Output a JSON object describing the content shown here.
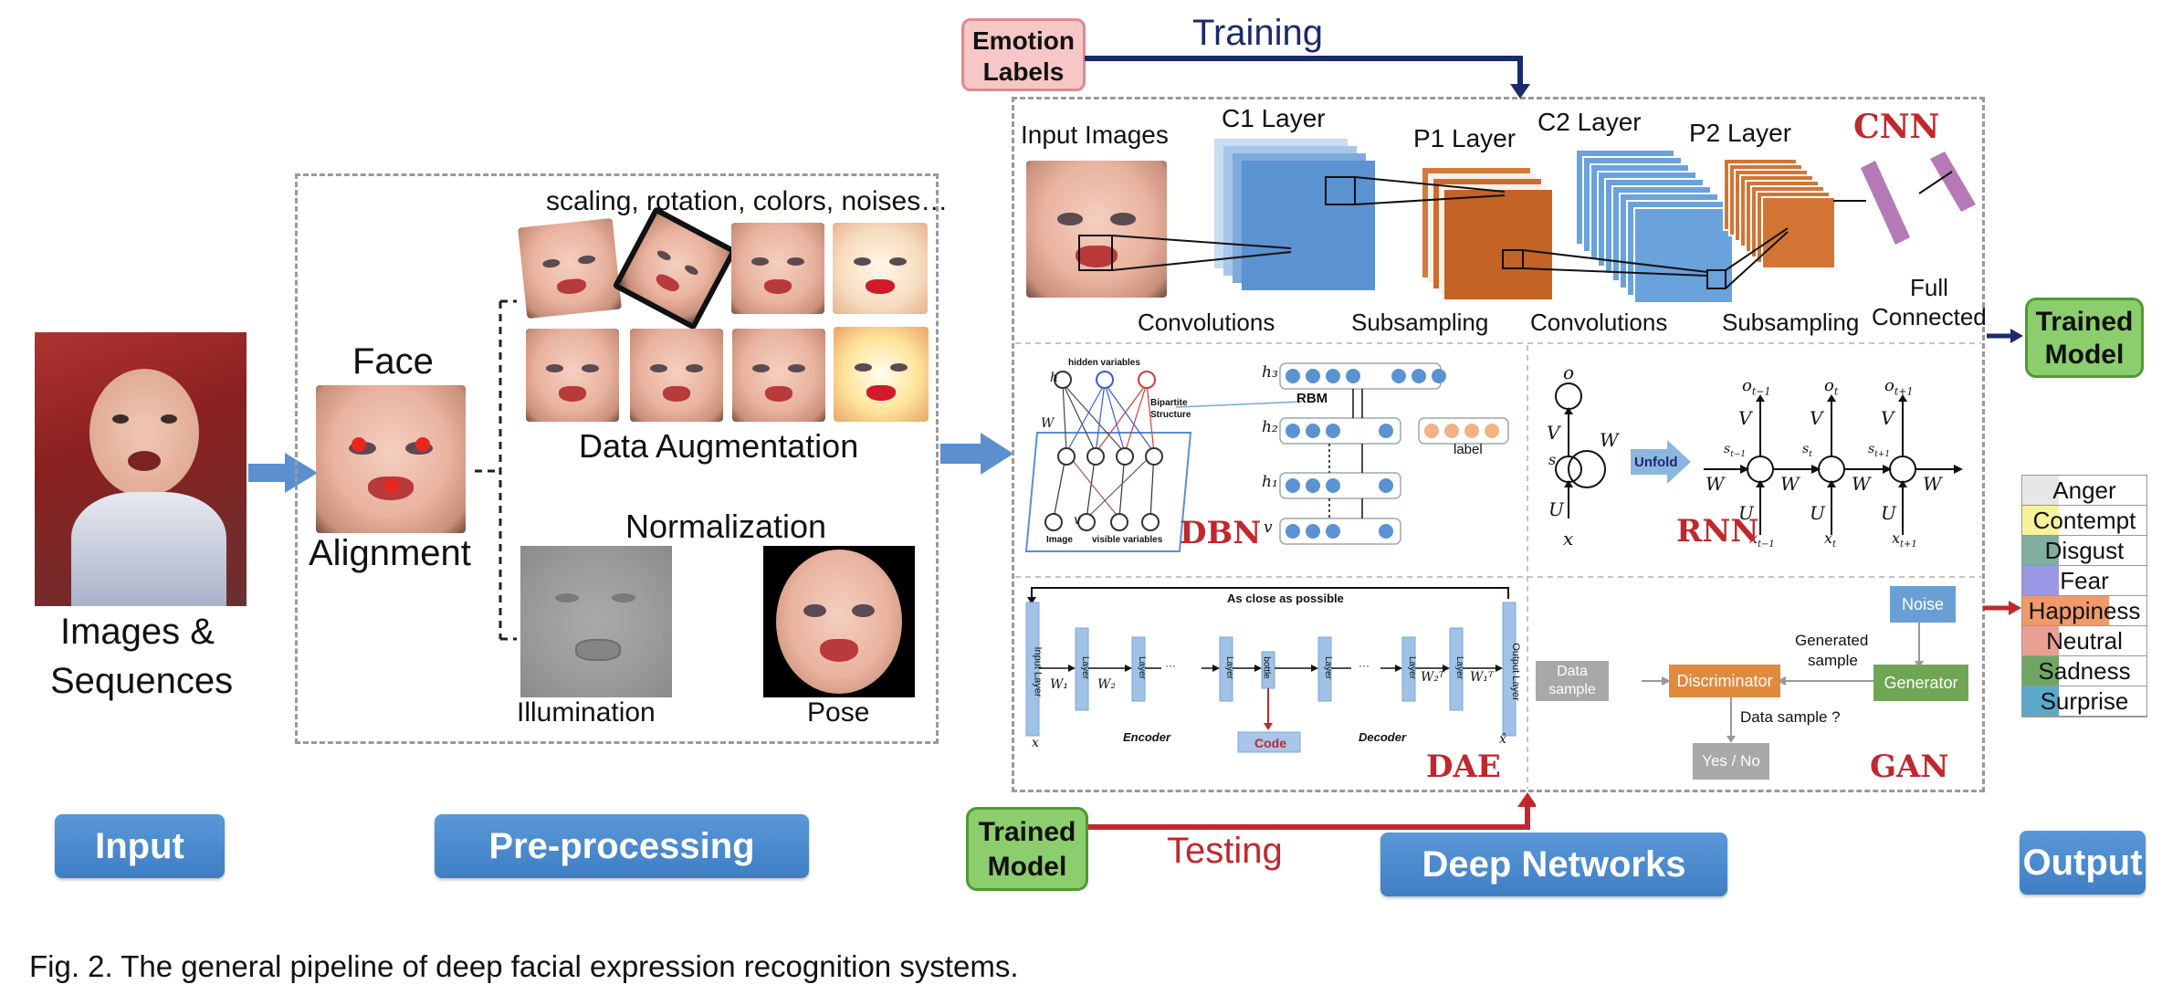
{
  "stages": {
    "input": "Input",
    "preprocessing": "Pre-processing",
    "deep_networks": "Deep Networks",
    "output": "Output"
  },
  "input_panel": {
    "caption_line1": "Images &",
    "caption_line2": "Sequences"
  },
  "preprocessing": {
    "face_label": "Face",
    "alignment_label": "Alignment",
    "augmentation_top": "scaling, rotation, colors, noises…",
    "augmentation_label": "Data Augmentation",
    "normalization_label": "Normalization",
    "illumination_label": "Illumination",
    "pose_label": "Pose"
  },
  "training": {
    "emotion_labels_line1": "Emotion",
    "emotion_labels_line2": "Labels",
    "training_label": "Training",
    "trained_model_top_line1": "Trained",
    "trained_model_top_line2": "Model",
    "trained_model_bottom_line1": "Trained",
    "trained_model_bottom_line2": "Model",
    "testing_label": "Testing"
  },
  "cnn": {
    "name": "CNN",
    "input_images": "Input Images",
    "c1": "C1 Layer",
    "p1": "P1 Layer",
    "c2": "C2 Layer",
    "p2": "P2 Layer",
    "convolutions1": "Convolutions",
    "subsampling1": "Subsampling",
    "convolutions2": "Convolutions",
    "subsampling2": "Subsampling",
    "full_line1": "Full",
    "full_line2": "Connected"
  },
  "dbn": {
    "name": "DBN",
    "hidden_variables": "hidden variables",
    "bipartite_line1": "Bipartite",
    "bipartite_line2": "Structure",
    "image": "Image",
    "visible_variables": "visible variables",
    "rbm": "RBM",
    "label": "label",
    "h": "h",
    "w": "W",
    "v": "v",
    "h3": "h₃",
    "h2": "h₂",
    "h1": "h₁",
    "v_layer": "v"
  },
  "rnn": {
    "name": "RNN",
    "unfold": "Unfold",
    "o": "o",
    "V": "V",
    "W": "W",
    "s": "s",
    "U": "U",
    "x": "x",
    "o_prev": "o",
    "o_prev_sub": "t−1",
    "o_t": "o",
    "o_t_sub": "t",
    "o_next": "o",
    "o_next_sub": "t+1",
    "s_prev": "s",
    "s_prev_sub": "t−1",
    "s_t": "s",
    "s_t_sub": "t",
    "s_next": "s",
    "s_next_sub": "t+1",
    "x_prev": "x",
    "x_prev_sub": "t−1",
    "x_t": "x",
    "x_t_sub": "t",
    "x_next": "x",
    "x_next_sub": "t+1"
  },
  "dae": {
    "name": "DAE",
    "as_close": "As close as possible",
    "input_layer": "Input Layer",
    "output_layer": "Output Layer",
    "layer": "Layer",
    "bottle": "bottle",
    "code": "Code",
    "encoder": "Encoder",
    "decoder": "Decoder",
    "w1": "W₁",
    "w2": "W₂",
    "w2t": "W₂ᵀ",
    "w1t": "W₁ᵀ",
    "dots": "···",
    "x": "x",
    "xhat": "x̂"
  },
  "gan": {
    "name": "GAN",
    "noise": "Noise",
    "generator": "Generator",
    "discriminator": "Discriminator",
    "data_sample_line1": "Data",
    "data_sample_line2": "sample",
    "generated_line1": "Generated",
    "generated_line2": "sample",
    "data_sample_q": "Data sample ?",
    "yes_no": "Yes / No"
  },
  "emotions": [
    {
      "label": "Anger",
      "color": "#e6e6e6"
    },
    {
      "label": "Contempt",
      "color": "#f7f29a"
    },
    {
      "label": "Disgust",
      "color": "#7fae9e"
    },
    {
      "label": "Fear",
      "color": "#9b98e6"
    },
    {
      "label": "Happiness",
      "color": "#ef9a68"
    },
    {
      "label": "Neutral",
      "color": "#e9a093"
    },
    {
      "label": "Sadness",
      "color": "#6fa663"
    },
    {
      "label": "Surprise",
      "color": "#5aa9c9"
    }
  ],
  "caption": "Fig. 2. The general pipeline of deep facial expression recognition systems."
}
